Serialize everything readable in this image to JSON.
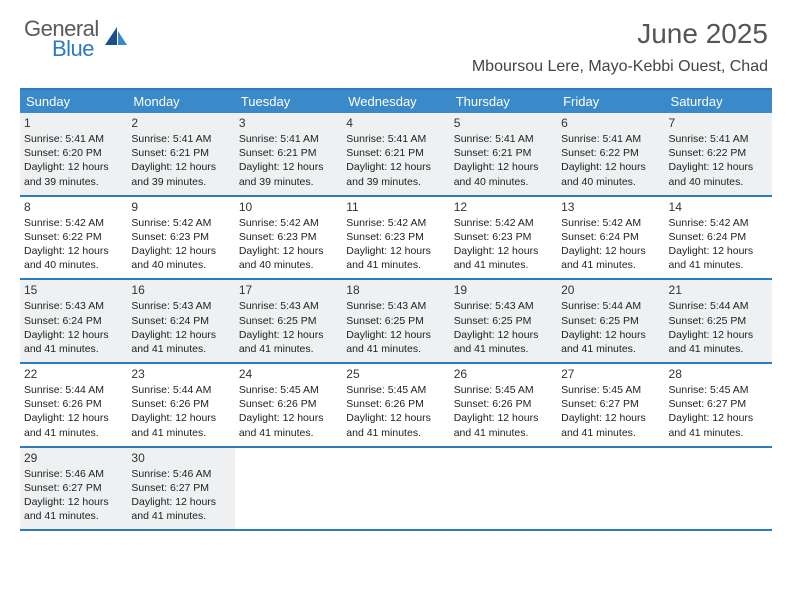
{
  "brand": {
    "word1": "General",
    "word2": "Blue"
  },
  "title": "June 2025",
  "location": "Mboursou Lere, Mayo-Kebbi Ouest, Chad",
  "colors": {
    "header_bar": "#3a89c9",
    "rule": "#2b7bbf",
    "shaded_bg": "#eef0f1",
    "text": "#222222",
    "title_text": "#555555",
    "logo_gray": "#5a5a5a",
    "logo_blue": "#2b7bbf"
  },
  "day_names": [
    "Sunday",
    "Monday",
    "Tuesday",
    "Wednesday",
    "Thursday",
    "Friday",
    "Saturday"
  ],
  "weeks": [
    {
      "shaded": true,
      "cells": [
        {
          "n": 1,
          "sr": "5:41 AM",
          "ss": "6:20 PM",
          "dl": "12 hours and 39 minutes."
        },
        {
          "n": 2,
          "sr": "5:41 AM",
          "ss": "6:21 PM",
          "dl": "12 hours and 39 minutes."
        },
        {
          "n": 3,
          "sr": "5:41 AM",
          "ss": "6:21 PM",
          "dl": "12 hours and 39 minutes."
        },
        {
          "n": 4,
          "sr": "5:41 AM",
          "ss": "6:21 PM",
          "dl": "12 hours and 39 minutes."
        },
        {
          "n": 5,
          "sr": "5:41 AM",
          "ss": "6:21 PM",
          "dl": "12 hours and 40 minutes."
        },
        {
          "n": 6,
          "sr": "5:41 AM",
          "ss": "6:22 PM",
          "dl": "12 hours and 40 minutes."
        },
        {
          "n": 7,
          "sr": "5:41 AM",
          "ss": "6:22 PM",
          "dl": "12 hours and 40 minutes."
        }
      ]
    },
    {
      "shaded": false,
      "cells": [
        {
          "n": 8,
          "sr": "5:42 AM",
          "ss": "6:22 PM",
          "dl": "12 hours and 40 minutes."
        },
        {
          "n": 9,
          "sr": "5:42 AM",
          "ss": "6:23 PM",
          "dl": "12 hours and 40 minutes."
        },
        {
          "n": 10,
          "sr": "5:42 AM",
          "ss": "6:23 PM",
          "dl": "12 hours and 40 minutes."
        },
        {
          "n": 11,
          "sr": "5:42 AM",
          "ss": "6:23 PM",
          "dl": "12 hours and 41 minutes."
        },
        {
          "n": 12,
          "sr": "5:42 AM",
          "ss": "6:23 PM",
          "dl": "12 hours and 41 minutes."
        },
        {
          "n": 13,
          "sr": "5:42 AM",
          "ss": "6:24 PM",
          "dl": "12 hours and 41 minutes."
        },
        {
          "n": 14,
          "sr": "5:42 AM",
          "ss": "6:24 PM",
          "dl": "12 hours and 41 minutes."
        }
      ]
    },
    {
      "shaded": true,
      "cells": [
        {
          "n": 15,
          "sr": "5:43 AM",
          "ss": "6:24 PM",
          "dl": "12 hours and 41 minutes."
        },
        {
          "n": 16,
          "sr": "5:43 AM",
          "ss": "6:24 PM",
          "dl": "12 hours and 41 minutes."
        },
        {
          "n": 17,
          "sr": "5:43 AM",
          "ss": "6:25 PM",
          "dl": "12 hours and 41 minutes."
        },
        {
          "n": 18,
          "sr": "5:43 AM",
          "ss": "6:25 PM",
          "dl": "12 hours and 41 minutes."
        },
        {
          "n": 19,
          "sr": "5:43 AM",
          "ss": "6:25 PM",
          "dl": "12 hours and 41 minutes."
        },
        {
          "n": 20,
          "sr": "5:44 AM",
          "ss": "6:25 PM",
          "dl": "12 hours and 41 minutes."
        },
        {
          "n": 21,
          "sr": "5:44 AM",
          "ss": "6:25 PM",
          "dl": "12 hours and 41 minutes."
        }
      ]
    },
    {
      "shaded": false,
      "cells": [
        {
          "n": 22,
          "sr": "5:44 AM",
          "ss": "6:26 PM",
          "dl": "12 hours and 41 minutes."
        },
        {
          "n": 23,
          "sr": "5:44 AM",
          "ss": "6:26 PM",
          "dl": "12 hours and 41 minutes."
        },
        {
          "n": 24,
          "sr": "5:45 AM",
          "ss": "6:26 PM",
          "dl": "12 hours and 41 minutes."
        },
        {
          "n": 25,
          "sr": "5:45 AM",
          "ss": "6:26 PM",
          "dl": "12 hours and 41 minutes."
        },
        {
          "n": 26,
          "sr": "5:45 AM",
          "ss": "6:26 PM",
          "dl": "12 hours and 41 minutes."
        },
        {
          "n": 27,
          "sr": "5:45 AM",
          "ss": "6:27 PM",
          "dl": "12 hours and 41 minutes."
        },
        {
          "n": 28,
          "sr": "5:45 AM",
          "ss": "6:27 PM",
          "dl": "12 hours and 41 minutes."
        }
      ]
    },
    {
      "shaded": true,
      "cells": [
        {
          "n": 29,
          "sr": "5:46 AM",
          "ss": "6:27 PM",
          "dl": "12 hours and 41 minutes."
        },
        {
          "n": 30,
          "sr": "5:46 AM",
          "ss": "6:27 PM",
          "dl": "12 hours and 41 minutes."
        },
        {
          "empty": true
        },
        {
          "empty": true
        },
        {
          "empty": true
        },
        {
          "empty": true
        },
        {
          "empty": true
        }
      ]
    }
  ],
  "labels": {
    "sunrise": "Sunrise:",
    "sunset": "Sunset:",
    "daylight": "Daylight:"
  },
  "typography": {
    "title_fontsize": 28,
    "location_fontsize": 16,
    "day_header_fontsize": 13,
    "day_num_fontsize": 12,
    "body_fontsize": 10.5
  }
}
